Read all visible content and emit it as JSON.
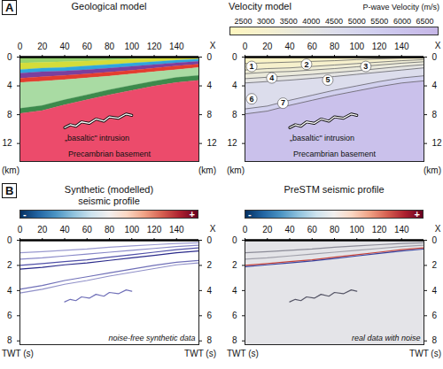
{
  "chart_data": [
    {
      "type": "area",
      "letter": "A",
      "title": "Geological model",
      "x": [
        0,
        20,
        40,
        60,
        80,
        100,
        120,
        140,
        160
      ],
      "boundaries": [
        [
          0,
          0,
          0,
          0,
          0,
          0,
          0,
          0,
          0
        ],
        [
          0.9,
          0.8,
          0.7,
          0.6,
          0.5,
          0.35,
          0.25,
          0.15,
          0.1
        ],
        [
          1.8,
          1.6,
          1.5,
          1.3,
          1.1,
          0.9,
          0.7,
          0.5,
          0.35
        ],
        [
          2.3,
          2.1,
          2.0,
          1.8,
          1.6,
          1.35,
          1.1,
          0.85,
          0.65
        ],
        [
          3.0,
          2.8,
          2.6,
          2.4,
          2.15,
          1.9,
          1.6,
          1.3,
          1.05
        ],
        [
          3.6,
          3.4,
          3.2,
          2.95,
          2.7,
          2.4,
          2.1,
          1.8,
          1.5
        ],
        [
          7.2,
          6.8,
          6.0,
          5.3,
          4.6,
          4.0,
          3.4,
          2.9,
          2.6
        ],
        [
          7.9,
          7.5,
          6.7,
          6.0,
          5.3,
          4.7,
          4.1,
          3.6,
          3.3
        ],
        [
          14.5,
          14.5,
          14.5,
          14.5,
          14.5,
          14.5,
          14.5,
          14.5,
          14.5
        ]
      ],
      "colors": [
        "#95d36e",
        "#d4dc3a",
        "#2ea6de",
        "#7b3f9e",
        "#e43d2f",
        "#a9dba3",
        "#3d8a4c",
        "#ec4b6b"
      ],
      "intrusion": {
        "label": "„basaltic\" intrusion",
        "color": "#111111",
        "x": [
          40,
          45,
          50,
          55,
          62,
          68,
          75,
          80,
          88,
          95,
          100
        ],
        "y": [
          9.8,
          9.4,
          9.6,
          9.0,
          9.2,
          8.6,
          8.9,
          8.3,
          8.5,
          7.9,
          8.1
        ]
      },
      "base_label": "Precambrian basement",
      "xlim": [
        0,
        160
      ],
      "xticks": [
        0,
        20,
        40,
        60,
        80,
        100,
        120,
        140
      ],
      "ylim": [
        0,
        14.5
      ],
      "yticks": [
        0,
        4,
        8,
        12
      ],
      "x_label": "X",
      "y_label": "(km)"
    },
    {
      "type": "area",
      "title": "Velocity model",
      "x": [
        0,
        20,
        40,
        60,
        80,
        100,
        120,
        140,
        160
      ],
      "boundaries": [
        [
          0,
          0,
          0,
          0,
          0,
          0,
          0,
          0,
          0
        ],
        [
          0.9,
          0.8,
          0.7,
          0.6,
          0.5,
          0.35,
          0.25,
          0.15,
          0.1
        ],
        [
          1.8,
          1.6,
          1.5,
          1.3,
          1.1,
          0.9,
          0.7,
          0.5,
          0.35
        ],
        [
          2.3,
          2.1,
          2.0,
          1.8,
          1.6,
          1.35,
          1.1,
          0.85,
          0.65
        ],
        [
          3.0,
          2.8,
          2.6,
          2.4,
          2.15,
          1.9,
          1.6,
          1.3,
          1.05
        ],
        [
          3.6,
          3.4,
          3.2,
          2.95,
          2.7,
          2.4,
          2.1,
          1.8,
          1.5
        ],
        [
          7.2,
          6.8,
          6.0,
          5.3,
          4.6,
          4.0,
          3.4,
          2.9,
          2.6
        ],
        [
          7.9,
          7.5,
          6.7,
          6.0,
          5.3,
          4.7,
          4.1,
          3.6,
          3.3
        ],
        [
          14.5,
          14.5,
          14.5,
          14.5,
          14.5,
          14.5,
          14.5,
          14.5,
          14.5
        ]
      ],
      "velocities": [
        2600,
        2900,
        3300,
        3600,
        4000,
        4600,
        5300,
        6200
      ],
      "colorbar": {
        "label": "P-wave Velocity (m/s)",
        "range": [
          2200,
          6800
        ],
        "ticks": [
          2500,
          3000,
          3500,
          4000,
          4500,
          5000,
          5500,
          6000,
          6500
        ]
      },
      "layer_labels": [
        {
          "text": "1",
          "x": 6,
          "y": 1.3
        },
        {
          "text": "2",
          "x": 55,
          "y": 1.0
        },
        {
          "text": "3",
          "x": 108,
          "y": 1.3
        },
        {
          "text": "4",
          "x": 24,
          "y": 2.9
        },
        {
          "text": "5",
          "x": 74,
          "y": 3.2
        },
        {
          "text": "6",
          "x": 6,
          "y": 5.8
        },
        {
          "text": "7",
          "x": 34,
          "y": 6.4
        }
      ],
      "intrusion": {
        "label": "„basaltic\" intrusion",
        "color": "#111111",
        "x": [
          40,
          45,
          50,
          55,
          62,
          68,
          75,
          80,
          88,
          95,
          100
        ],
        "y": [
          9.8,
          9.4,
          9.6,
          9.0,
          9.2,
          8.6,
          8.9,
          8.3,
          8.5,
          7.9,
          8.1
        ]
      },
      "base_label": "Precambrian basement",
      "xlim": [
        0,
        160
      ],
      "xticks": [
        0,
        20,
        40,
        60,
        80,
        100,
        120,
        140
      ],
      "ylim": [
        0,
        14.5
      ],
      "yticks": [
        0,
        4,
        8,
        12
      ],
      "x_label": "X",
      "y_label": "(km)"
    },
    {
      "type": "line",
      "letter": "B",
      "title": "Synthetic (modelled) seismic profile",
      "colorbar": {
        "min_label": "-",
        "max_label": "+"
      },
      "x": [
        0,
        20,
        40,
        60,
        80,
        100,
        120,
        140,
        160
      ],
      "series": [
        {
          "color": "#9a9ad0",
          "values": [
            1.0,
            0.9,
            0.8,
            0.7,
            0.55,
            0.45,
            0.35,
            0.25,
            0.2
          ]
        },
        {
          "color": "#8888c8",
          "values": [
            1.5,
            1.4,
            1.25,
            1.1,
            0.95,
            0.8,
            0.65,
            0.5,
            0.4
          ]
        },
        {
          "color": "#5050a8",
          "values": [
            2.0,
            1.85,
            1.7,
            1.55,
            1.35,
            1.15,
            0.95,
            0.75,
            0.6
          ]
        },
        {
          "color": "#2a2a8a",
          "values": [
            2.3,
            2.15,
            1.95,
            1.8,
            1.6,
            1.4,
            1.2,
            1.0,
            0.85
          ]
        },
        {
          "color": "#7070b8",
          "values": [
            3.9,
            3.6,
            3.2,
            2.9,
            2.6,
            2.3,
            2.0,
            1.75,
            1.6
          ]
        },
        {
          "color": "#9090c8",
          "values": [
            4.2,
            3.9,
            3.5,
            3.2,
            2.85,
            2.55,
            2.25,
            1.95,
            1.8
          ]
        }
      ],
      "intrusion": {
        "color": "#7070b8",
        "x": [
          40,
          45,
          50,
          55,
          62,
          68,
          75,
          80,
          88,
          95,
          100
        ],
        "y": [
          4.9,
          4.7,
          4.8,
          4.5,
          4.6,
          4.3,
          4.45,
          4.15,
          4.25,
          3.95,
          4.05
        ]
      },
      "note": "noise-free synthetic data",
      "xlim": [
        0,
        160
      ],
      "xticks": [
        0,
        20,
        40,
        60,
        80,
        100,
        120,
        140
      ],
      "ylim": [
        0,
        8.3
      ],
      "yticks": [
        0,
        2,
        4,
        6,
        8
      ],
      "x_label": "X",
      "y_label": "TWT (s)"
    },
    {
      "type": "line",
      "title": "PreSTM seismic profile",
      "colorbar": {
        "min_label": "-",
        "max_label": "+"
      },
      "x": [
        0,
        20,
        40,
        60,
        80,
        100,
        120,
        140,
        160
      ],
      "series": [
        {
          "color": "#8c8c98",
          "values": [
            1.0,
            0.9,
            0.8,
            0.7,
            0.55,
            0.45,
            0.35,
            0.25,
            0.2
          ]
        },
        {
          "color": "#a0a0aa",
          "values": [
            1.5,
            1.4,
            1.25,
            1.1,
            0.95,
            0.8,
            0.65,
            0.5,
            0.4
          ]
        },
        {
          "color": "#c8443a",
          "values": [
            2.0,
            1.85,
            1.7,
            1.55,
            1.35,
            1.15,
            0.95,
            0.75,
            0.6
          ]
        },
        {
          "color": "#3a44a0",
          "values": [
            2.1,
            1.95,
            1.8,
            1.65,
            1.45,
            1.25,
            1.05,
            0.85,
            0.7
          ]
        }
      ],
      "intrusion": {
        "color": "#555566",
        "x": [
          40,
          45,
          50,
          55,
          62,
          68,
          75,
          80,
          88,
          95,
          100
        ],
        "y": [
          4.9,
          4.7,
          4.8,
          4.5,
          4.6,
          4.3,
          4.45,
          4.15,
          4.25,
          3.95,
          4.05
        ]
      },
      "note": "real data with noise",
      "xlim": [
        0,
        160
      ],
      "xticks": [
        0,
        20,
        40,
        60,
        80,
        100,
        120,
        140
      ],
      "ylim": [
        0,
        8.3
      ],
      "yticks": [
        0,
        2,
        4,
        6,
        8
      ],
      "x_label": "X",
      "y_label": "TWT (s)"
    }
  ]
}
